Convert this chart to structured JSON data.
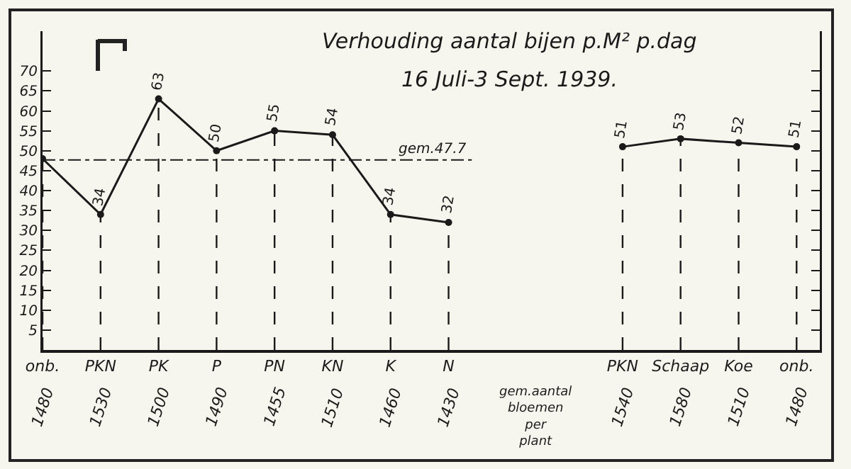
{
  "chart_data": {
    "type": "line",
    "title": "Verhouding aantal bijen p.M² p.dag",
    "subtitle": "16 Juli-3 Sept. 1939.",
    "categories": [
      "onb.",
      "PKN",
      "PK",
      "P",
      "PN",
      "KN",
      "K",
      "N",
      null,
      null,
      "PKN",
      "Schaap",
      "Koe",
      "onb."
    ],
    "values": [
      48,
      34,
      63,
      50,
      55,
      54,
      34,
      32,
      null,
      null,
      51,
      53,
      52,
      51
    ],
    "value_labels": [
      null,
      "34",
      "63",
      "50",
      "55",
      "54",
      "34",
      "32",
      null,
      null,
      "51",
      "53",
      "52",
      "51"
    ],
    "color": "#1a1a1a",
    "marker": "circle",
    "line_style": "solid",
    "ylim": [
      0,
      80
    ],
    "yticks": [
      5,
      10,
      15,
      20,
      25,
      30,
      35,
      40,
      45,
      50,
      55,
      60,
      65,
      70
    ],
    "grid": "x",
    "ref_lines": [
      {
        "axis": "y",
        "value": 47.7,
        "label": "gem.47.7",
        "line_style": "dashdot"
      }
    ],
    "annotations": [
      "1480",
      "1530",
      "1500",
      "1490",
      "1455",
      "1510",
      "1460",
      "1430",
      "gem.aantal bloemen per plant",
      "1540",
      "1580",
      "1510",
      "1480"
    ]
  }
}
